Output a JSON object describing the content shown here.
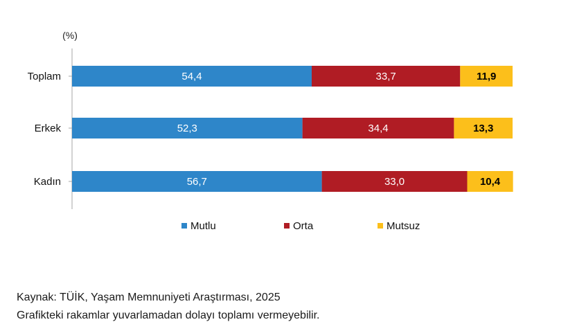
{
  "chart_data": {
    "type": "bar",
    "orientation": "horizontal",
    "stacked": true,
    "unit_label": "(%)",
    "categories": [
      "Toplam",
      "Erkek",
      "Kadın"
    ],
    "series": [
      {
        "name": "Mutlu",
        "values": [
          54.4,
          52.3,
          56.7
        ],
        "color": "#2e86c9",
        "label_color": "#ffffff"
      },
      {
        "name": "Orta",
        "values": [
          33.7,
          34.4,
          33.0
        ],
        "color": "#b01c24",
        "label_color": "#ffffff"
      },
      {
        "name": "Mutsuz",
        "values": [
          11.9,
          13.3,
          10.4
        ],
        "color": "#fcbf1b",
        "label_color": "#000000"
      }
    ],
    "xlim": [
      0,
      100
    ],
    "grid": false,
    "legend_position": "bottom"
  },
  "footer": {
    "source": "Kaynak: TÜİK, Yaşam Memnuniyeti Araştırması, 2025",
    "note": "Grafikteki rakamlar yuvarlamadan dolayı toplamı vermeyebilir."
  }
}
